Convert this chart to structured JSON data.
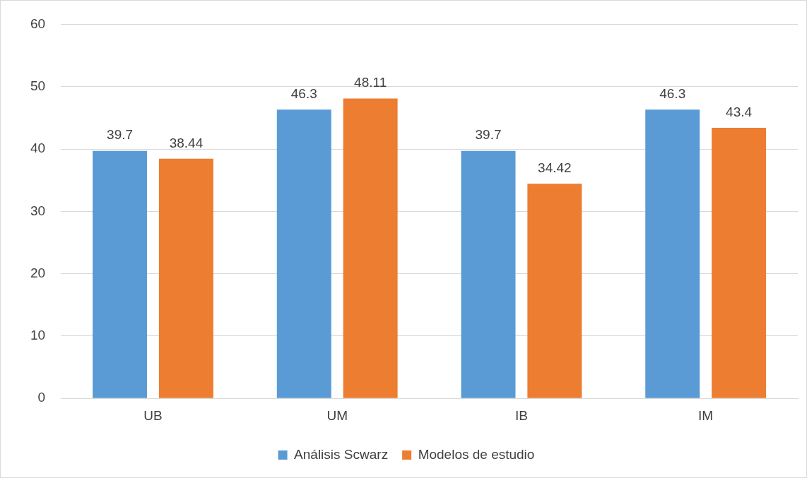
{
  "chart_data": {
    "type": "bar",
    "categories": [
      "UB",
      "UM",
      "IB",
      "IM"
    ],
    "series": [
      {
        "name": "Análisis Scwarz",
        "color": "#5b9bd5",
        "values": [
          39.7,
          46.3,
          39.7,
          46.3
        ]
      },
      {
        "name": "Modelos de estudio",
        "color": "#ed7d31",
        "values": [
          38.44,
          48.11,
          34.42,
          43.4
        ]
      }
    ],
    "ylim": [
      0,
      60
    ],
    "yticks": [
      0,
      10,
      20,
      30,
      40,
      50,
      60
    ],
    "grid": "y",
    "legend": "bottom",
    "data_labels": true
  }
}
